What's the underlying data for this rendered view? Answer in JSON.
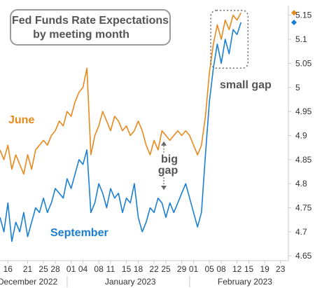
{
  "chart_data": {
    "type": "line",
    "title_line1": "Fed Funds Rate Expectations",
    "title_line2": "by meeting month",
    "ylim": [
      4.64,
      5.17
    ],
    "yticks": [
      4.65,
      4.7,
      4.75,
      4.8,
      4.85,
      4.9,
      4.95,
      5,
      5.05,
      5.1,
      5.15
    ],
    "ytick_labels": [
      "4.65",
      "4.7",
      "4.75",
      "4.8",
      "4.85",
      "4.9",
      "4.95",
      "5",
      "5.05",
      "5.1",
      "5.15"
    ],
    "x_domain": [
      "2022-12-14",
      "2023-02-25"
    ],
    "xticks": [
      {
        "date": "2022-12-16",
        "label": "16"
      },
      {
        "date": "2022-12-21",
        "label": "21"
      },
      {
        "date": "2022-12-25",
        "label": "25"
      },
      {
        "date": "2022-12-28",
        "label": "28"
      },
      {
        "date": "2023-01-01",
        "label": "01"
      },
      {
        "date": "2023-01-04",
        "label": "04"
      },
      {
        "date": "2023-01-08",
        "label": "08"
      },
      {
        "date": "2023-01-11",
        "label": "11"
      },
      {
        "date": "2023-01-15",
        "label": "15"
      },
      {
        "date": "2023-01-18",
        "label": "18"
      },
      {
        "date": "2023-01-22",
        "label": "22"
      },
      {
        "date": "2023-01-25",
        "label": "25"
      },
      {
        "date": "2023-01-29",
        "label": "29"
      },
      {
        "date": "2023-02-01",
        "label": "01"
      },
      {
        "date": "2023-02-05",
        "label": "05"
      },
      {
        "date": "2023-02-08",
        "label": "08"
      },
      {
        "date": "2023-02-12",
        "label": "12"
      },
      {
        "date": "2023-02-15",
        "label": "15"
      },
      {
        "date": "2023-02-19",
        "label": "19"
      },
      {
        "date": "2023-02-23",
        "label": "23"
      }
    ],
    "months": [
      {
        "label": "December 2022",
        "center": "2022-12-21"
      },
      {
        "label": "January 2023",
        "center": "2023-01-16"
      },
      {
        "label": "February 2023",
        "center": "2023-02-14"
      }
    ],
    "month_separators": [
      "2022-12-31",
      "2023-01-31"
    ],
    "series": [
      {
        "name": "June",
        "color": "#e8891c",
        "last_value": 5.155,
        "points": [
          [
            "2022-12-14",
            4.87
          ],
          [
            "2022-12-15",
            4.85
          ],
          [
            "2022-12-16",
            4.88
          ],
          [
            "2022-12-17",
            4.83
          ],
          [
            "2022-12-18",
            4.86
          ],
          [
            "2022-12-19",
            4.84
          ],
          [
            "2022-12-20",
            4.82
          ],
          [
            "2022-12-21",
            4.86
          ],
          [
            "2022-12-22",
            4.83
          ],
          [
            "2022-12-23",
            4.87
          ],
          [
            "2022-12-24",
            4.88
          ],
          [
            "2022-12-25",
            4.89
          ],
          [
            "2022-12-26",
            4.88
          ],
          [
            "2022-12-27",
            4.9
          ],
          [
            "2022-12-28",
            4.91
          ],
          [
            "2022-12-29",
            4.93
          ],
          [
            "2022-12-30",
            4.92
          ],
          [
            "2022-12-31",
            4.95
          ],
          [
            "2023-01-01",
            4.94
          ],
          [
            "2023-01-02",
            4.97
          ],
          [
            "2023-01-03",
            4.99
          ],
          [
            "2023-01-04",
            5.0
          ],
          [
            "2023-01-05",
            5.04
          ],
          [
            "2023-01-06",
            4.86
          ],
          [
            "2023-01-07",
            4.9
          ],
          [
            "2023-01-08",
            4.92
          ],
          [
            "2023-01-09",
            4.95
          ],
          [
            "2023-01-10",
            4.93
          ],
          [
            "2023-01-11",
            4.91
          ],
          [
            "2023-01-12",
            4.94
          ],
          [
            "2023-01-13",
            4.93
          ],
          [
            "2023-01-14",
            4.91
          ],
          [
            "2023-01-15",
            4.92
          ],
          [
            "2023-01-16",
            4.9
          ],
          [
            "2023-01-17",
            4.91
          ],
          [
            "2023-01-18",
            4.93
          ],
          [
            "2023-01-19",
            4.91
          ],
          [
            "2023-01-20",
            4.88
          ],
          [
            "2023-01-21",
            4.86
          ],
          [
            "2023-01-22",
            4.89
          ],
          [
            "2023-01-23",
            4.87
          ],
          [
            "2023-01-24",
            4.91
          ],
          [
            "2023-01-25",
            4.9
          ],
          [
            "2023-01-26",
            4.89
          ],
          [
            "2023-01-27",
            4.9
          ],
          [
            "2023-01-28",
            4.91
          ],
          [
            "2023-01-29",
            4.9
          ],
          [
            "2023-01-30",
            4.91
          ],
          [
            "2023-01-31",
            4.9
          ],
          [
            "2023-02-01",
            4.88
          ],
          [
            "2023-02-02",
            4.86
          ],
          [
            "2023-02-03",
            4.88
          ],
          [
            "2023-02-04",
            4.94
          ],
          [
            "2023-02-05",
            5.03
          ],
          [
            "2023-02-06",
            5.09
          ],
          [
            "2023-02-07",
            5.13
          ],
          [
            "2023-02-08",
            5.1
          ],
          [
            "2023-02-09",
            5.14
          ],
          [
            "2023-02-10",
            5.12
          ],
          [
            "2023-02-11",
            5.15
          ],
          [
            "2023-02-12",
            5.14
          ],
          [
            "2023-02-13",
            5.155
          ]
        ]
      },
      {
        "name": "September",
        "color": "#1a7fd4",
        "last_value": 5.135,
        "points": [
          [
            "2022-12-14",
            4.73
          ],
          [
            "2022-12-15",
            4.7
          ],
          [
            "2022-12-16",
            4.76
          ],
          [
            "2022-12-17",
            4.68
          ],
          [
            "2022-12-18",
            4.72
          ],
          [
            "2022-12-19",
            4.7
          ],
          [
            "2022-12-20",
            4.74
          ],
          [
            "2022-12-21",
            4.69
          ],
          [
            "2022-12-22",
            4.72
          ],
          [
            "2022-12-23",
            4.75
          ],
          [
            "2022-12-24",
            4.74
          ],
          [
            "2022-12-25",
            4.77
          ],
          [
            "2022-12-26",
            4.74
          ],
          [
            "2022-12-27",
            4.76
          ],
          [
            "2022-12-28",
            4.79
          ],
          [
            "2022-12-29",
            4.78
          ],
          [
            "2022-12-30",
            4.77
          ],
          [
            "2022-12-31",
            4.81
          ],
          [
            "2023-01-01",
            4.79
          ],
          [
            "2023-01-02",
            4.82
          ],
          [
            "2023-01-03",
            4.85
          ],
          [
            "2023-01-04",
            4.84
          ],
          [
            "2023-01-05",
            4.87
          ],
          [
            "2023-01-06",
            4.74
          ],
          [
            "2023-01-07",
            4.76
          ],
          [
            "2023-01-08",
            4.8
          ],
          [
            "2023-01-09",
            4.78
          ],
          [
            "2023-01-10",
            4.75
          ],
          [
            "2023-01-11",
            4.79
          ],
          [
            "2023-01-12",
            4.77
          ],
          [
            "2023-01-13",
            4.78
          ],
          [
            "2023-01-14",
            4.74
          ],
          [
            "2023-01-15",
            4.77
          ],
          [
            "2023-01-16",
            4.76
          ],
          [
            "2023-01-17",
            4.8
          ],
          [
            "2023-01-18",
            4.73
          ],
          [
            "2023-01-19",
            4.7
          ],
          [
            "2023-01-20",
            4.72
          ],
          [
            "2023-01-21",
            4.75
          ],
          [
            "2023-01-22",
            4.74
          ],
          [
            "2023-01-23",
            4.77
          ],
          [
            "2023-01-24",
            4.76
          ],
          [
            "2023-01-25",
            4.73
          ],
          [
            "2023-01-26",
            4.76
          ],
          [
            "2023-01-27",
            4.74
          ],
          [
            "2023-01-28",
            4.76
          ],
          [
            "2023-01-29",
            4.78
          ],
          [
            "2023-01-30",
            4.8
          ],
          [
            "2023-01-31",
            4.77
          ],
          [
            "2023-02-01",
            4.74
          ],
          [
            "2023-02-02",
            4.71
          ],
          [
            "2023-02-03",
            4.74
          ],
          [
            "2023-02-04",
            4.86
          ],
          [
            "2023-02-05",
            4.97
          ],
          [
            "2023-02-06",
            5.04
          ],
          [
            "2023-02-07",
            5.09
          ],
          [
            "2023-02-08",
            5.05
          ],
          [
            "2023-02-09",
            5.1
          ],
          [
            "2023-02-10",
            5.07
          ],
          [
            "2023-02-11",
            5.12
          ],
          [
            "2023-02-12",
            5.11
          ],
          [
            "2023-02-13",
            5.135
          ]
        ]
      }
    ],
    "annotations": {
      "big_gap_line1": "big",
      "big_gap_line2": "gap",
      "small_gap": "small gap",
      "big_gap_date": "2023-01-25",
      "big_gap_from": 4.885,
      "big_gap_to": 4.79,
      "small_gap_from_date": "2023-02-05",
      "small_gap_to_date": "2023-02-13",
      "small_gap_range": [
        5.04,
        5.16
      ]
    },
    "labels": {
      "june": "June",
      "september": "September"
    },
    "grid": false
  }
}
